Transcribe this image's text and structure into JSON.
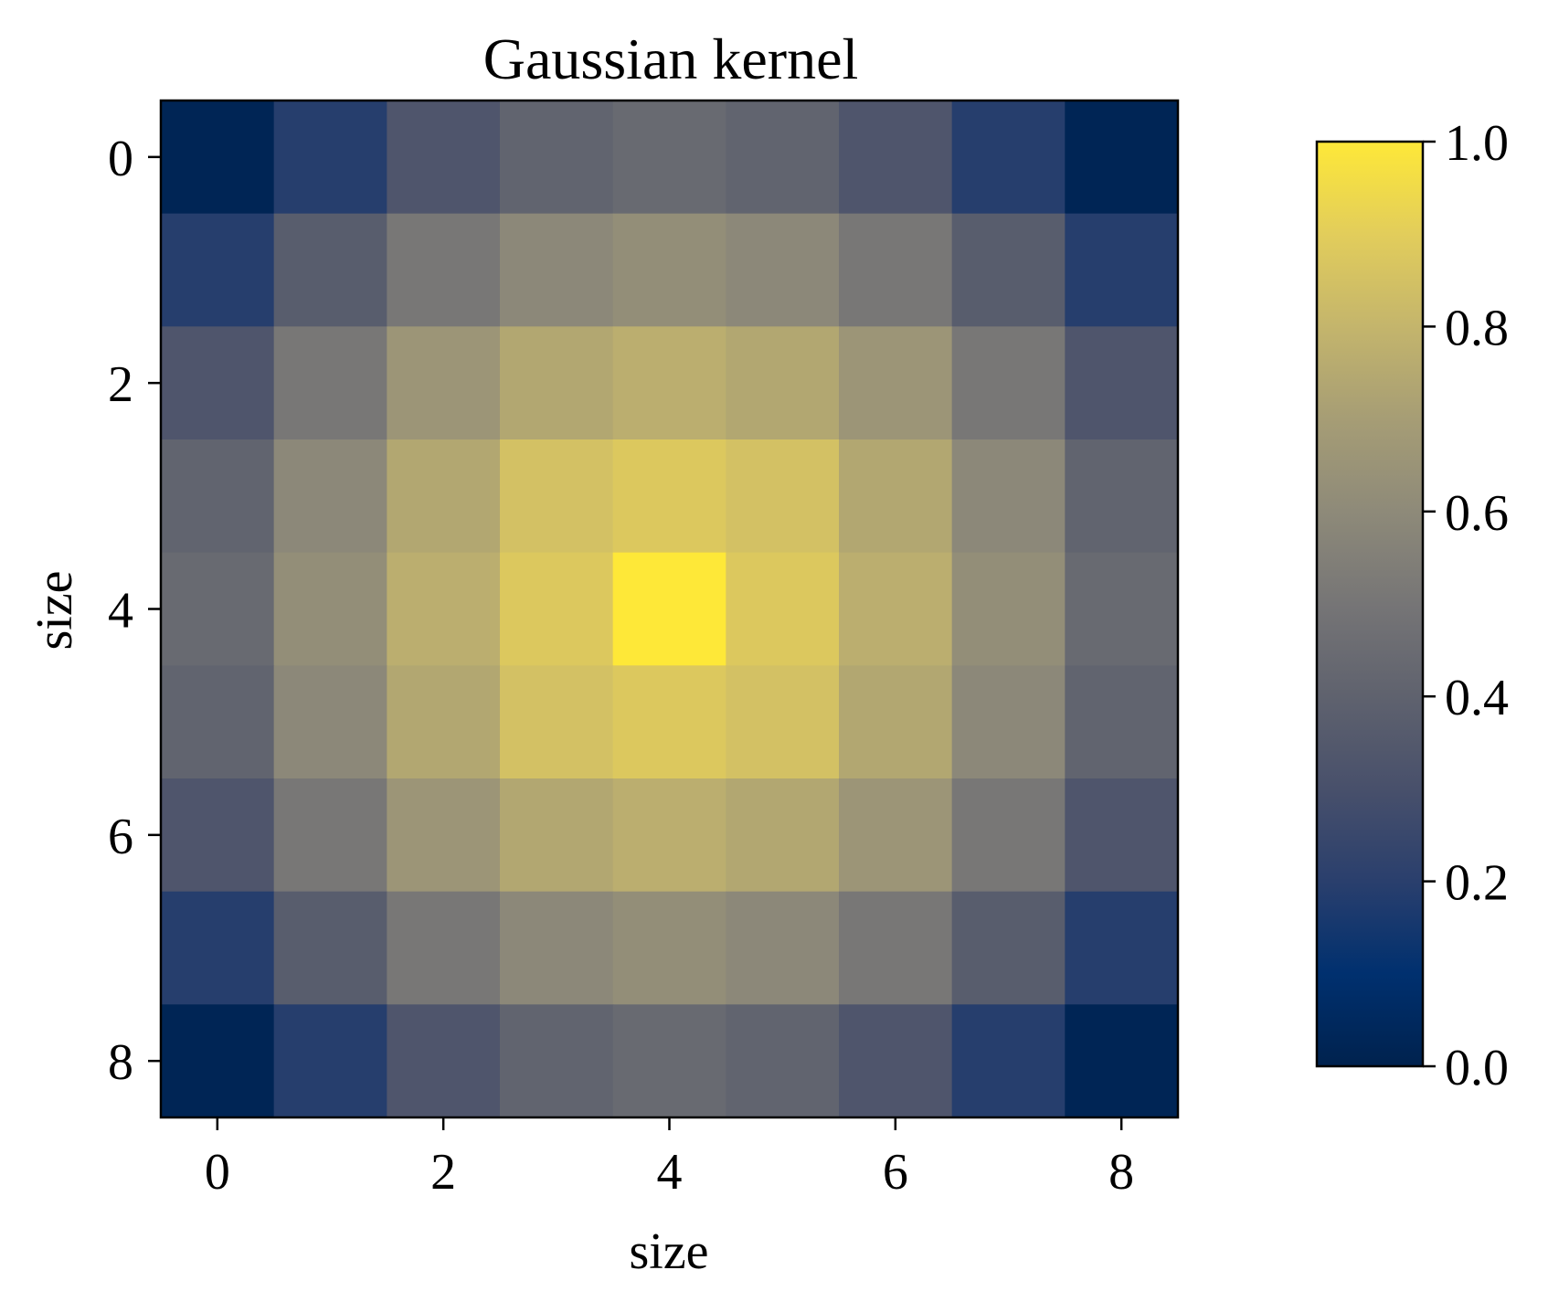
{
  "chart_data": {
    "type": "heatmap",
    "title": "Gaussian kernel",
    "xlabel": "size",
    "ylabel": "size",
    "x_ticks": [
      "0",
      "2",
      "4",
      "6",
      "8"
    ],
    "y_ticks": [
      "0",
      "2",
      "4",
      "6",
      "8"
    ],
    "colormap": "cividis",
    "colorbar": {
      "range": [
        0.0,
        1.0
      ],
      "ticks": [
        "0.0",
        "0.2",
        "0.4",
        "0.6",
        "0.8",
        "1.0"
      ]
    },
    "values": [
      [
        0.02,
        0.19,
        0.33,
        0.41,
        0.44,
        0.41,
        0.33,
        0.19,
        0.02
      ],
      [
        0.19,
        0.37,
        0.51,
        0.59,
        0.62,
        0.59,
        0.51,
        0.37,
        0.19
      ],
      [
        0.33,
        0.51,
        0.66,
        0.74,
        0.77,
        0.74,
        0.66,
        0.51,
        0.33
      ],
      [
        0.41,
        0.59,
        0.74,
        0.85,
        0.88,
        0.85,
        0.74,
        0.59,
        0.41
      ],
      [
        0.44,
        0.62,
        0.77,
        0.88,
        1.0,
        0.88,
        0.77,
        0.62,
        0.44
      ],
      [
        0.41,
        0.59,
        0.74,
        0.85,
        0.88,
        0.85,
        0.74,
        0.59,
        0.41
      ],
      [
        0.33,
        0.51,
        0.66,
        0.74,
        0.77,
        0.74,
        0.66,
        0.51,
        0.33
      ],
      [
        0.19,
        0.37,
        0.51,
        0.59,
        0.62,
        0.59,
        0.51,
        0.37,
        0.19
      ],
      [
        0.02,
        0.19,
        0.33,
        0.41,
        0.44,
        0.41,
        0.33,
        0.19,
        0.02
      ]
    ]
  }
}
